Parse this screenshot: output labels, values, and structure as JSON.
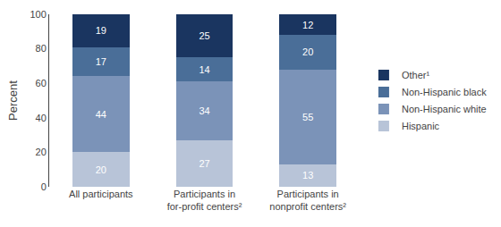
{
  "chart_data": {
    "type": "bar",
    "stacked": true,
    "categories": [
      "All participants",
      "Participants in\nfor-profit centers²",
      "Participants in\nnonprofit centers²"
    ],
    "series": [
      {
        "name": "Hispanic",
        "color": "#b8c4d8",
        "values": [
          20,
          27,
          13
        ]
      },
      {
        "name": "Non-Hispanic white",
        "color": "#7b93b8",
        "values": [
          44,
          34,
          55
        ]
      },
      {
        "name": "Non-Hispanic black",
        "color": "#4a6e98",
        "values": [
          17,
          14,
          20
        ]
      },
      {
        "name": "Other¹",
        "color": "#1a3560",
        "values": [
          19,
          25,
          12
        ]
      }
    ],
    "y_label": "Percent",
    "ylim": [
      0,
      100
    ],
    "yticks": [
      0,
      20,
      40,
      60,
      80,
      100
    ],
    "data_labels": true,
    "grid": false,
    "legend": "right"
  }
}
